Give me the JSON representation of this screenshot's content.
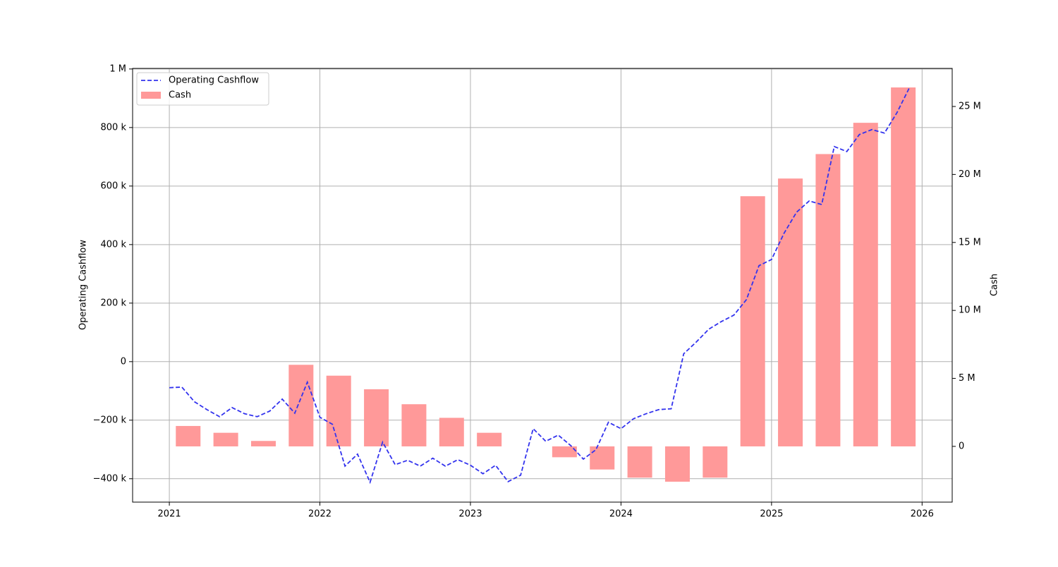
{
  "chart_data": {
    "type": "combo",
    "y_label": "Operating Cashflow",
    "y2_label": "Cash",
    "xlim": [
      2020.756,
      2026.2
    ],
    "xticks": [
      2021,
      2022,
      2023,
      2024,
      2025,
      2026
    ],
    "ylim": [
      -480000,
      1002000
    ],
    "yticks": [
      {
        "value": -400000,
        "label": "−400 k"
      },
      {
        "value": -200000,
        "label": "−200 k"
      },
      0,
      {
        "value": 200000,
        "label": "200 k"
      },
      {
        "value": 400000,
        "label": "400 k"
      },
      {
        "value": 600000,
        "label": "600 k"
      },
      {
        "value": 800000,
        "label": "800 k"
      },
      {
        "value": 1000000,
        "label": "1 M"
      }
    ],
    "y2lim": [
      -4100000,
      27800000
    ],
    "y2ticks": [
      0,
      {
        "value": 5000000,
        "label": "5 M"
      },
      {
        "value": 10000000,
        "label": "10 M"
      },
      {
        "value": 15000000,
        "label": "15 M"
      },
      {
        "value": 20000000,
        "label": "20 M"
      },
      {
        "value": 25000000,
        "label": "25 M"
      }
    ],
    "grid": true,
    "legend": "upper-left",
    "series": [
      {
        "name": "Operating Cashflow",
        "type": "line",
        "axis": "y",
        "color": "#3333ee",
        "x": [
          2021,
          2021.0833,
          2021.1667,
          2021.25,
          2021.3333,
          2021.4167,
          2021.5,
          2021.5833,
          2021.6667,
          2021.75,
          2021.8333,
          2021.9167,
          2022,
          2022.0833,
          2022.1667,
          2022.25,
          2022.3333,
          2022.4167,
          2022.5,
          2022.5833,
          2022.6667,
          2022.75,
          2022.8333,
          2022.9167,
          2023,
          2023.0833,
          2023.1667,
          2023.25,
          2023.3333,
          2023.4167,
          2023.5,
          2023.5833,
          2023.6667,
          2023.75,
          2023.8333,
          2023.9167,
          2024,
          2024.0833,
          2024.1667,
          2024.25,
          2024.3333,
          2024.4167,
          2024.5,
          2024.5833,
          2024.6667,
          2024.75,
          2024.8333,
          2024.9167,
          2025,
          2025.0833,
          2025.1667,
          2025.25,
          2025.3333,
          2025.4167,
          2025.5,
          2025.5833,
          2025.6667,
          2025.75,
          2025.8333,
          2025.9167
        ],
        "values": [
          -89000,
          -87000,
          -137000,
          -164000,
          -188000,
          -157000,
          -178000,
          -188000,
          -169000,
          -128000,
          -176000,
          -70000,
          -190000,
          -214000,
          -357000,
          -316000,
          -412000,
          -275000,
          -352000,
          -337000,
          -357000,
          -330000,
          -357000,
          -335000,
          -354000,
          -383000,
          -354000,
          -410000,
          -388000,
          -229000,
          -272000,
          -251000,
          -287000,
          -333000,
          -301000,
          -207000,
          -229000,
          -195000,
          -178000,
          -164000,
          -161000,
          27000,
          67000,
          111000,
          137000,
          159000,
          212000,
          328000,
          349000,
          439000,
          511000,
          549000,
          537000,
          735000,
          718000,
          776000,
          793000,
          781000,
          851000,
          937000
        ]
      },
      {
        "name": "Cash",
        "type": "bar",
        "axis": "y2",
        "color": "#ff9999",
        "x": [
          2021.125,
          2021.375,
          2021.625,
          2021.875,
          2022.125,
          2022.375,
          2022.625,
          2022.875,
          2023.125,
          2023.375,
          2023.625,
          2023.875,
          2024.125,
          2024.375,
          2024.625,
          2024.875,
          2025.125,
          2025.375,
          2025.625,
          2025.875
        ],
        "values": [
          1500000,
          1000000,
          400000,
          6000000,
          5200000,
          4200000,
          3100000,
          2100000,
          1000000,
          0,
          -800000,
          -1700000,
          -2300000,
          -2600000,
          -2300000,
          18400000,
          19700000,
          21500000,
          23800000,
          26400000
        ]
      }
    ]
  }
}
